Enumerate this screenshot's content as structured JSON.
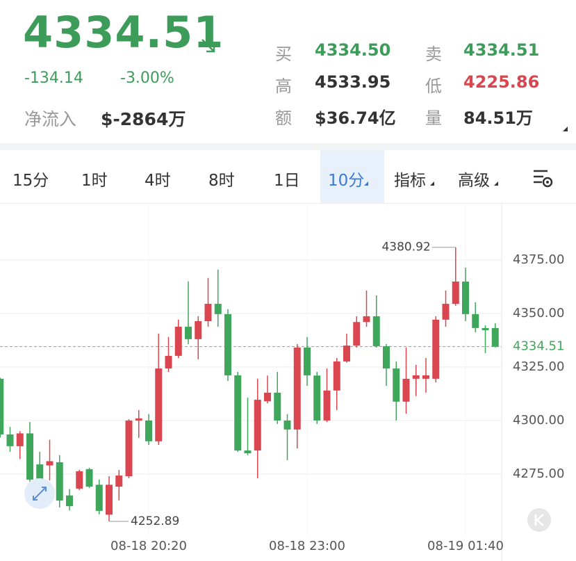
{
  "header": {
    "price": "4334.51",
    "change": "-134.14",
    "change_pct": "-3.00%",
    "net_inflow_label": "净流入",
    "net_inflow": "$-2864万"
  },
  "quotes": [
    {
      "label": "买",
      "value": "4334.50"
    },
    {
      "label": "卖",
      "value": "4334.51"
    },
    {
      "label": "高",
      "value": "4533.95"
    },
    {
      "label": "低",
      "value": "4225.86"
    },
    {
      "label": "额",
      "value": "$36.74亿"
    },
    {
      "label": "量",
      "value": "84.51万"
    }
  ],
  "tabs": [
    "15分",
    "1时",
    "4时",
    "8时",
    "1日",
    "10分",
    "指标",
    "高级"
  ],
  "active_tab": 5,
  "chart_data": {
    "type": "candlestick",
    "x": [
      null,
      null,
      null,
      null,
      null,
      null,
      null,
      null,
      null,
      null,
      null,
      null,
      null,
      null,
      null,
      "08-18 20:20",
      null,
      null,
      null,
      null,
      null,
      null,
      null,
      null,
      null,
      null,
      null,
      null,
      null,
      null,
      null,
      "08-18 23:00",
      null,
      null,
      null,
      null,
      null,
      null,
      null,
      null,
      null,
      null,
      null,
      null,
      null,
      null,
      null,
      "08-19 01:40",
      null,
      null,
      null
    ],
    "open": [
      4319.5,
      4293.5,
      4288.0,
      4294.0,
      4279.5,
      4279.0,
      4280.5,
      4265.0,
      4268.2,
      4277.3,
      4270.0,
      4256.0,
      4269.1,
      4274.0,
      4300.0,
      4300.0,
      4290.3,
      4324.3,
      4330.2,
      4343.8,
      4338.0,
      4346.4,
      4354.5,
      4349.7,
      4321.1,
      4286.0,
      4286.0,
      4309.0,
      4313.0,
      4300.0,
      4295.8,
      4334.1,
      4321.0,
      4300.0,
      4314.0,
      4327.6,
      4335.0,
      4346.0,
      4348.7,
      4334.7,
      4324.3,
      4308.8,
      4319.5,
      4319.5,
      4319.5,
      4347.1,
      4354.5,
      4364.9,
      4349.7,
      4343.2,
      4343.2
    ],
    "high": [
      4320.0,
      4297.0,
      4295.0,
      4299.3,
      4285.4,
      4291.0,
      4283.8,
      4268.0,
      4277.0,
      4277.9,
      4272.4,
      4274.0,
      4276.9,
      4300.6,
      4304.9,
      4303.0,
      4340.6,
      4339.0,
      4347.1,
      4365.0,
      4348.7,
      4366.6,
      4370.5,
      4352.0,
      4322.7,
      4310.7,
      4319.5,
      4321.0,
      4322.7,
      4303.0,
      4335.7,
      4339.0,
      4322.7,
      4324.3,
      4329.2,
      4340.6,
      4348.7,
      4360.7,
      4358.4,
      4335.7,
      4327.6,
      4334.1,
      4326.0,
      4329.2,
      4348.7,
      4360.7,
      4380.92,
      4371.4,
      4355.2,
      4344.5,
      4345.4
    ],
    "low": [
      4292.0,
      4285.4,
      4282.0,
      4270.8,
      4267.5,
      4272.0,
      4259.4,
      4258.0,
      4267.5,
      4268.5,
      4256.2,
      4252.89,
      4262.7,
      4273.0,
      4291.9,
      4288.6,
      4288.6,
      4322.7,
      4329.2,
      4335.7,
      4328.6,
      4343.8,
      4343.8,
      4318.5,
      4285.4,
      4283.8,
      4273.0,
      4308.0,
      4298.4,
      4281.5,
      4287.0,
      4316.2,
      4298.4,
      4299.3,
      4304.9,
      4327.0,
      4334.1,
      4343.8,
      4334.1,
      4316.2,
      4300.0,
      4303.2,
      4311.4,
      4313.0,
      4317.8,
      4343.8,
      4353.6,
      4346.4,
      4341.2,
      4331.5,
      4334.1
    ],
    "close": [
      4293.5,
      4288.0,
      4294.0,
      4272.4,
      4272.4,
      4281.0,
      4262.6,
      4260.0,
      4276.3,
      4269.1,
      4257.8,
      4270.0,
      4274.3,
      4300.0,
      4301.0,
      4290.3,
      4324.3,
      4330.2,
      4343.8,
      4338.0,
      4346.4,
      4354.5,
      4349.7,
      4321.1,
      4286.0,
      4284.7,
      4309.7,
      4313.0,
      4300.0,
      4295.8,
      4334.1,
      4321.1,
      4300.0,
      4314.0,
      4327.6,
      4335.0,
      4346.0,
      4348.7,
      4334.7,
      4324.3,
      4308.8,
      4319.5,
      4321.1,
      4321.1,
      4347.1,
      4354.5,
      4364.9,
      4349.7,
      4343.2,
      4342.2,
      4334.51
    ],
    "up_color": "#d9464f",
    "down_color": "#3fa75c",
    "ylim": [
      4246.4,
      4401.6
    ],
    "yticks": [
      {
        "value": 4275,
        "label": "4275.00"
      },
      {
        "value": 4300,
        "label": "4300.00"
      },
      {
        "value": 4325,
        "label": "4325.00"
      },
      {
        "value": 4350,
        "label": "4350.00"
      },
      {
        "value": 4375,
        "label": "4375.00"
      }
    ],
    "last_price": 4334.51,
    "annotations": [
      4380.92,
      4252.89
    ],
    "grid": true
  }
}
